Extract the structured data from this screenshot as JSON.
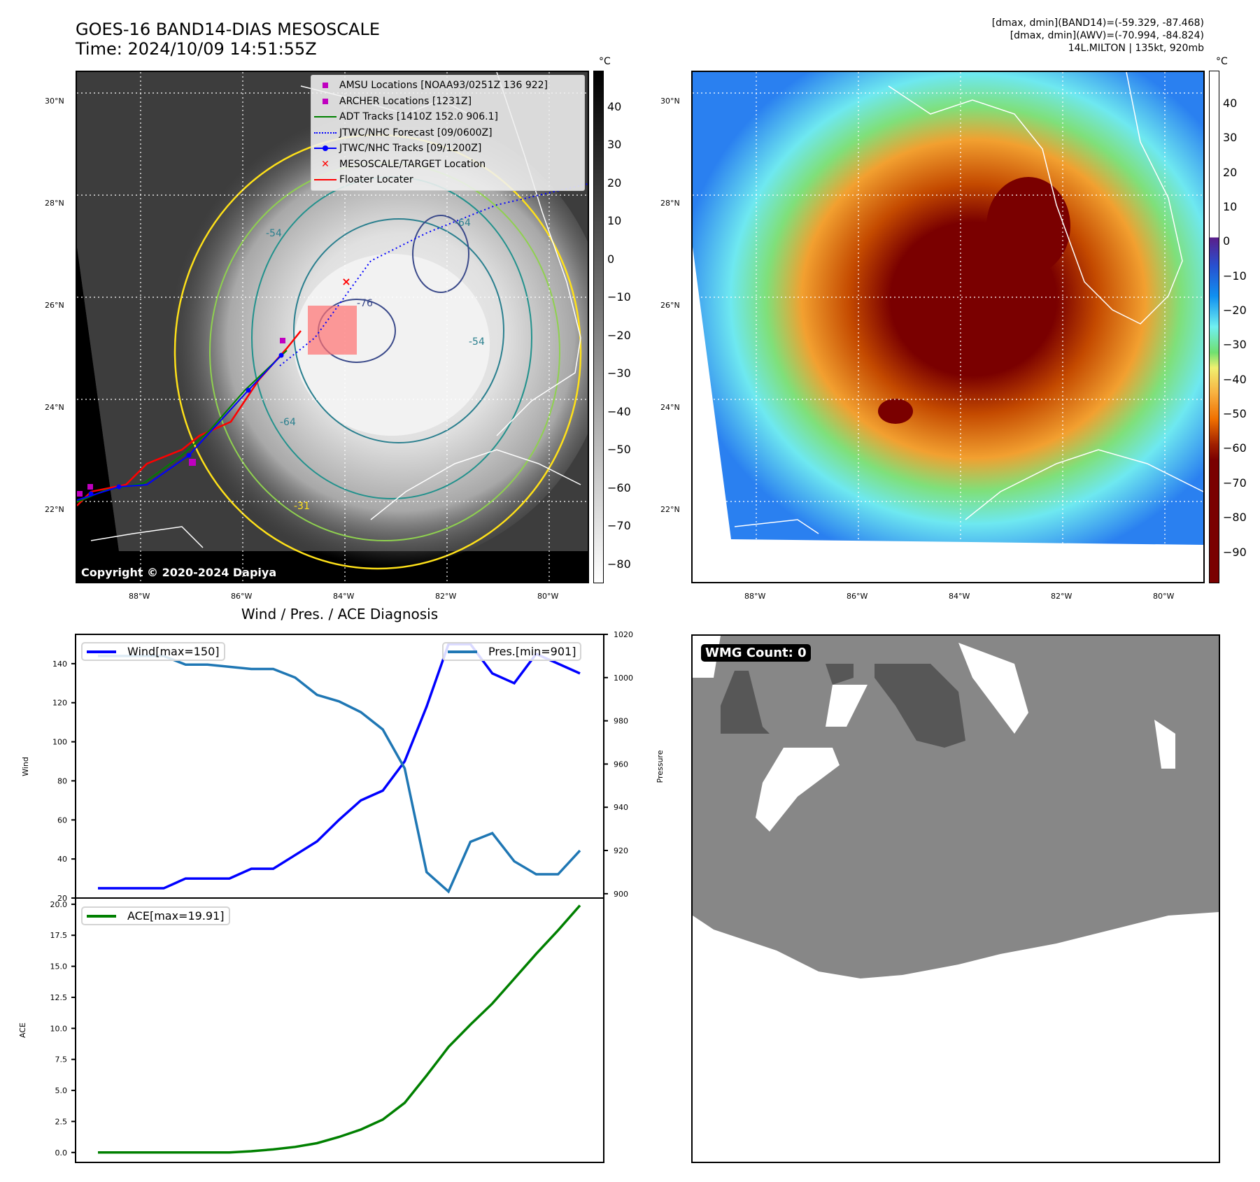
{
  "header": {
    "title_line1": "GOES-16 BAND14-DIAS MESOSCALE",
    "title_line2": "Time: 2024/10/09 14:51:55Z",
    "stats_line1": "[dmax, dmin](BAND14)=(-59.329, -87.468)",
    "stats_line2": "[dmax, dmin](AWV)=(-70.994, -84.824)",
    "stats_line3": "14L.MILTON | 135kt, 920mb"
  },
  "map_common": {
    "lat_labels": [
      "30°N",
      "28°N",
      "26°N",
      "24°N",
      "22°N"
    ],
    "lon_labels": [
      "88°W",
      "86°W",
      "84°W",
      "82°W",
      "80°W"
    ]
  },
  "map_ir": {
    "colorbar_unit": "°C",
    "colorbar_ticks": [
      "40",
      "30",
      "20",
      "10",
      "0",
      "−10",
      "−20",
      "−30",
      "−40",
      "−50",
      "−60",
      "−70",
      "−80"
    ],
    "contour_labels": [
      "-54",
      "-64",
      "-76",
      "-54",
      "-64",
      "-31"
    ],
    "copyright": "Copyright © 2020-2024 Dapiya",
    "legend": [
      {
        "label": "AMSU Locations [NOAA93/0251Z 136 922]",
        "symbol": "square",
        "color": "#c000c0"
      },
      {
        "label": "ARCHER Locations [1231Z]",
        "symbol": "square",
        "color": "#c000c0"
      },
      {
        "label": "ADT Tracks [1410Z 152.0 906.1]",
        "symbol": "line",
        "color": "#008000"
      },
      {
        "label": "JTWC/NHC Forecast [09/0600Z]",
        "symbol": "dotted",
        "color": "#0000ff"
      },
      {
        "label": "JTWC/NHC Tracks [09/1200Z]",
        "symbol": "line-dot",
        "color": "#0000ff"
      },
      {
        "label": "MESOSCALE/TARGET Location",
        "symbol": "x",
        "color": "#ff0000"
      },
      {
        "label": "Floater Locater",
        "symbol": "line",
        "color": "#ff0000"
      }
    ]
  },
  "map_awv": {
    "colorbar_unit": "°C",
    "colorbar_ticks": [
      "40",
      "30",
      "20",
      "10",
      "0",
      "−10",
      "−20",
      "−30",
      "−40",
      "−50",
      "−60",
      "−70",
      "−80",
      "−90"
    ]
  },
  "wmg": {
    "badge": "WMG Count: 0"
  },
  "colors": {
    "wind": "#0000ff",
    "pressure": "#1f77b4",
    "ace": "#008000",
    "wmg_mid": "#878787",
    "wmg_dark": "#575757"
  },
  "chart_data": [
    {
      "type": "line",
      "title": "Wind / Pres. / ACE Diagnosis",
      "ylabel": "Wind",
      "ylabel_right": "Pressure",
      "ylim": [
        20,
        155
      ],
      "ylim_right": [
        898,
        1020
      ],
      "yticks": [
        "20",
        "40",
        "60",
        "80",
        "100",
        "120",
        "140"
      ],
      "yticks_right": [
        "900",
        "920",
        "940",
        "960",
        "980",
        "1000",
        "1020"
      ],
      "x": [
        0,
        1,
        2,
        3,
        4,
        5,
        6,
        7,
        8,
        9,
        10,
        11,
        12,
        13,
        14,
        15,
        16,
        17,
        18,
        19,
        20,
        21,
        22
      ],
      "series": [
        {
          "name": "Wind[max=150]",
          "axis": "left",
          "values": [
            25,
            25,
            25,
            25,
            30,
            30,
            30,
            35,
            35,
            42,
            49,
            60,
            70,
            75,
            90,
            118,
            150,
            150,
            135,
            130,
            145,
            140,
            135
          ]
        },
        {
          "name": "Pres.[min=901]",
          "axis": "right",
          "values": [
            1010,
            1010,
            1010,
            1010,
            1006,
            1006,
            1005,
            1004,
            1004,
            1000,
            992,
            989,
            984,
            976,
            958,
            910,
            901,
            924,
            928,
            915,
            909,
            909,
            920
          ]
        }
      ],
      "legend": [
        "Wind[max=150]",
        "Pres.[min=901]"
      ],
      "grid": false
    },
    {
      "type": "line",
      "ylabel": "ACE",
      "ylim": [
        -0.8,
        20.5
      ],
      "yticks": [
        "0.0",
        "2.5",
        "5.0",
        "7.5",
        "10.0",
        "12.5",
        "15.0",
        "17.5",
        "20.0"
      ],
      "x": [
        0,
        1,
        2,
        3,
        4,
        5,
        6,
        7,
        8,
        9,
        10,
        11,
        12,
        13,
        14,
        15,
        16,
        17,
        18,
        19,
        20,
        21,
        22
      ],
      "series": [
        {
          "name": "ACE[max=19.91]",
          "values": [
            0,
            0,
            0,
            0,
            0,
            0,
            0,
            0.1,
            0.25,
            0.45,
            0.75,
            1.25,
            1.85,
            2.65,
            4.0,
            6.2,
            8.5,
            10.3,
            12.0,
            14.0,
            16.0,
            17.9,
            19.91
          ]
        }
      ],
      "legend": [
        "ACE[max=19.91]"
      ],
      "grid": false
    }
  ]
}
